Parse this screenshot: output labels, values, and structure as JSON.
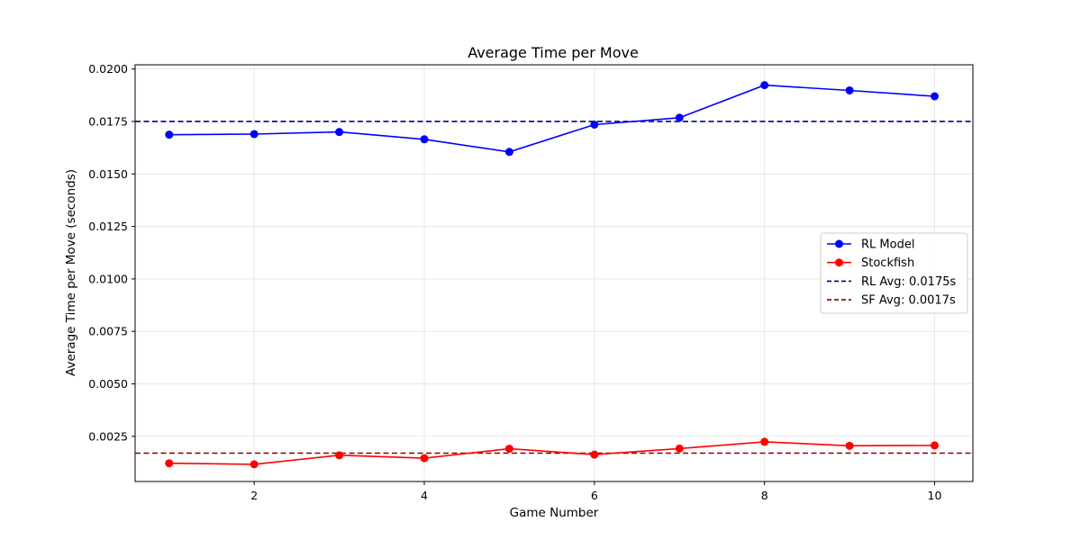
{
  "chart_data": {
    "type": "line",
    "title": "Average Time per Move",
    "xlabel": "Game Number",
    "ylabel": "Average Time per Move (seconds)",
    "xlim": [
      0.6,
      10.45
    ],
    "ylim": [
      0.00035,
      0.0202
    ],
    "x_ticks": [
      2,
      4,
      6,
      8,
      10
    ],
    "x_tick_labels": [
      "2",
      "4",
      "6",
      "8",
      "10"
    ],
    "y_ticks": [
      0.0025,
      0.005,
      0.0075,
      0.01,
      0.0125,
      0.015,
      0.0175,
      0.02
    ],
    "y_tick_labels": [
      "0.0025",
      "0.0050",
      "0.0075",
      "0.0100",
      "0.0125",
      "0.0150",
      "0.0175",
      "0.0200"
    ],
    "grid": true,
    "legend_position": "center-right",
    "x": [
      1,
      2,
      3,
      4,
      5,
      6,
      7,
      8,
      9,
      10
    ],
    "series": [
      {
        "name": "RL Model",
        "color": "#0000ff",
        "marker": "circle",
        "values": [
          0.01687,
          0.0169,
          0.017,
          0.01665,
          0.01605,
          0.01735,
          0.01768,
          0.01923,
          0.01898,
          0.0187
        ]
      },
      {
        "name": "Stockfish",
        "color": "#ff0000",
        "marker": "circle",
        "values": [
          0.00122,
          0.00117,
          0.0016,
          0.00146,
          0.00191,
          0.00163,
          0.00192,
          0.00224,
          0.00205,
          0.00207
        ]
      }
    ],
    "reference_lines": [
      {
        "name": "RL Avg: 0.0175s",
        "value": 0.0175,
        "color": "#00008b",
        "style": "dashed"
      },
      {
        "name": "SF Avg: 0.0017s",
        "value": 0.0017,
        "color": "#8b0000",
        "style": "dashed"
      }
    ]
  }
}
